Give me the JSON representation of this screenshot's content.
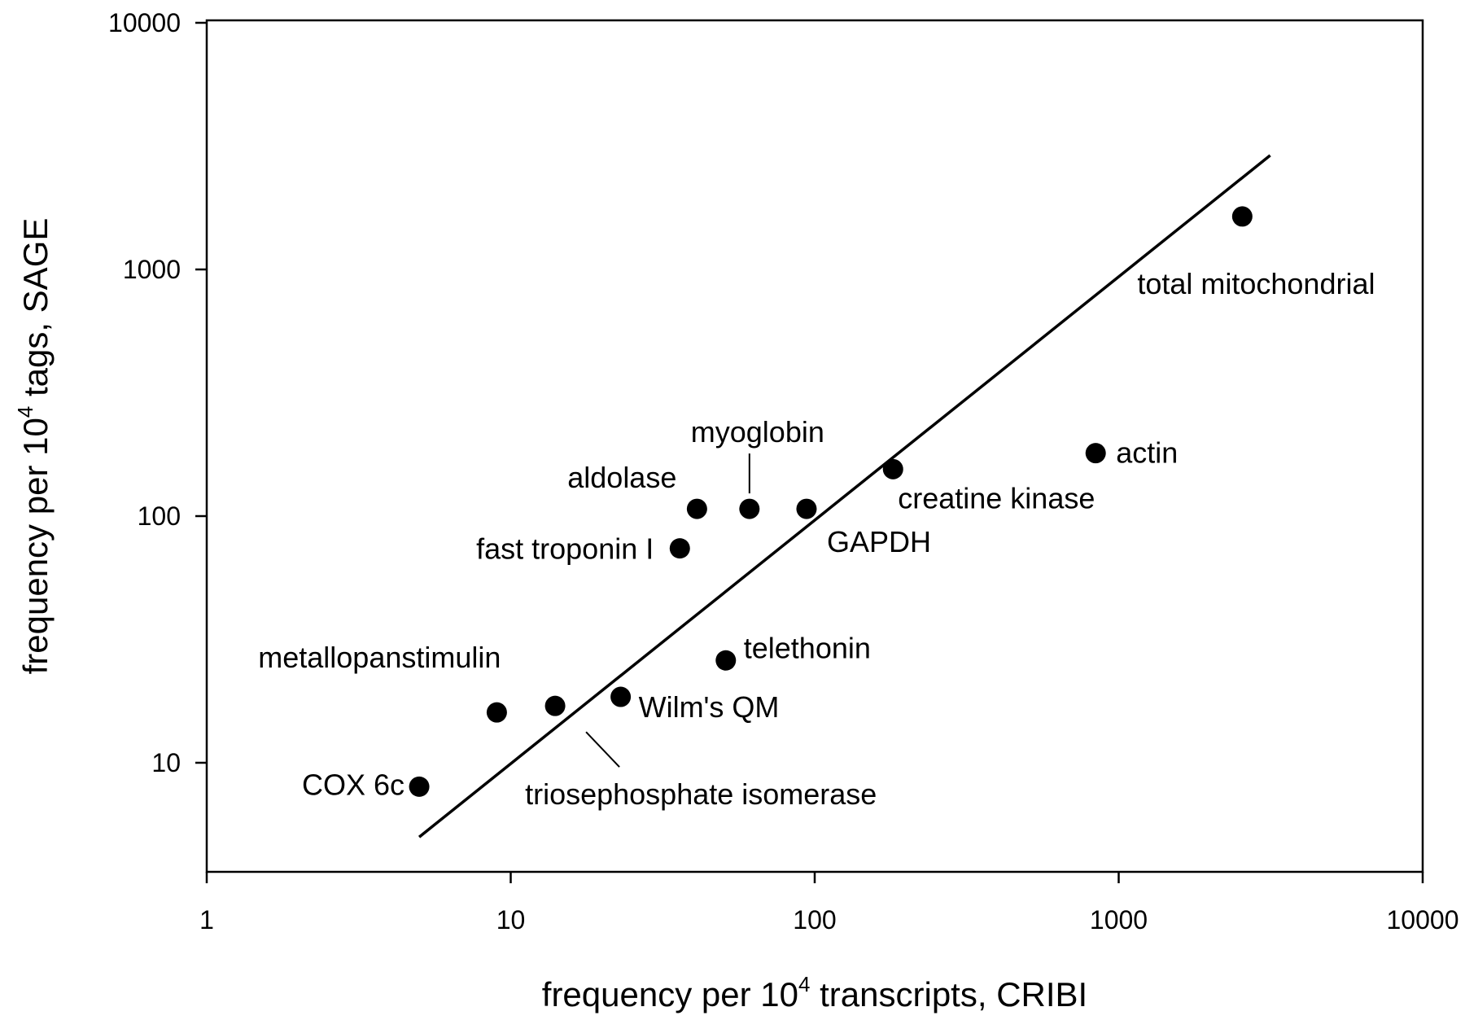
{
  "chart_data": {
    "type": "scatter",
    "x_scale": "log",
    "y_scale": "log",
    "xlim": [
      1,
      10000
    ],
    "ylim": [
      4,
      10000
    ],
    "x_ticks": [
      "1",
      "10",
      "100",
      "1000",
      "10000"
    ],
    "y_ticks": [
      "10",
      "100",
      "1000",
      "10000"
    ],
    "xlabel": {
      "before": "frequency per 10",
      "exp": "4",
      "after": " transcripts, CRIBI"
    },
    "ylabel": {
      "before": "frequency per 10",
      "exp": "4",
      "after": " tags, SAGE"
    },
    "grid": false,
    "points": [
      {
        "label": "COX 6c",
        "x": 5,
        "y": 8
      },
      {
        "label": "metallopanstimulin",
        "x": 9,
        "y": 16
      },
      {
        "label": "triosephosphate isomerase",
        "x": 14,
        "y": 17
      },
      {
        "label": "Wilm's QM",
        "x": 23,
        "y": 18.5
      },
      {
        "label": "fast troponin I",
        "x": 36,
        "y": 74
      },
      {
        "label": "aldolase",
        "x": 41,
        "y": 107
      },
      {
        "label": "myoglobin",
        "x": 61,
        "y": 107
      },
      {
        "label": "GAPDH",
        "x": 94,
        "y": 107
      },
      {
        "label": "telethonin",
        "x": 51,
        "y": 26
      },
      {
        "label": "creatine kinase",
        "x": 181,
        "y": 155
      },
      {
        "label": "actin",
        "x": 840,
        "y": 180
      },
      {
        "label": "total mitochondrial",
        "x": 2550,
        "y": 1640
      }
    ],
    "fit_line": {
      "x": [
        5,
        3150
      ],
      "y": [
        5,
        2900
      ]
    }
  }
}
